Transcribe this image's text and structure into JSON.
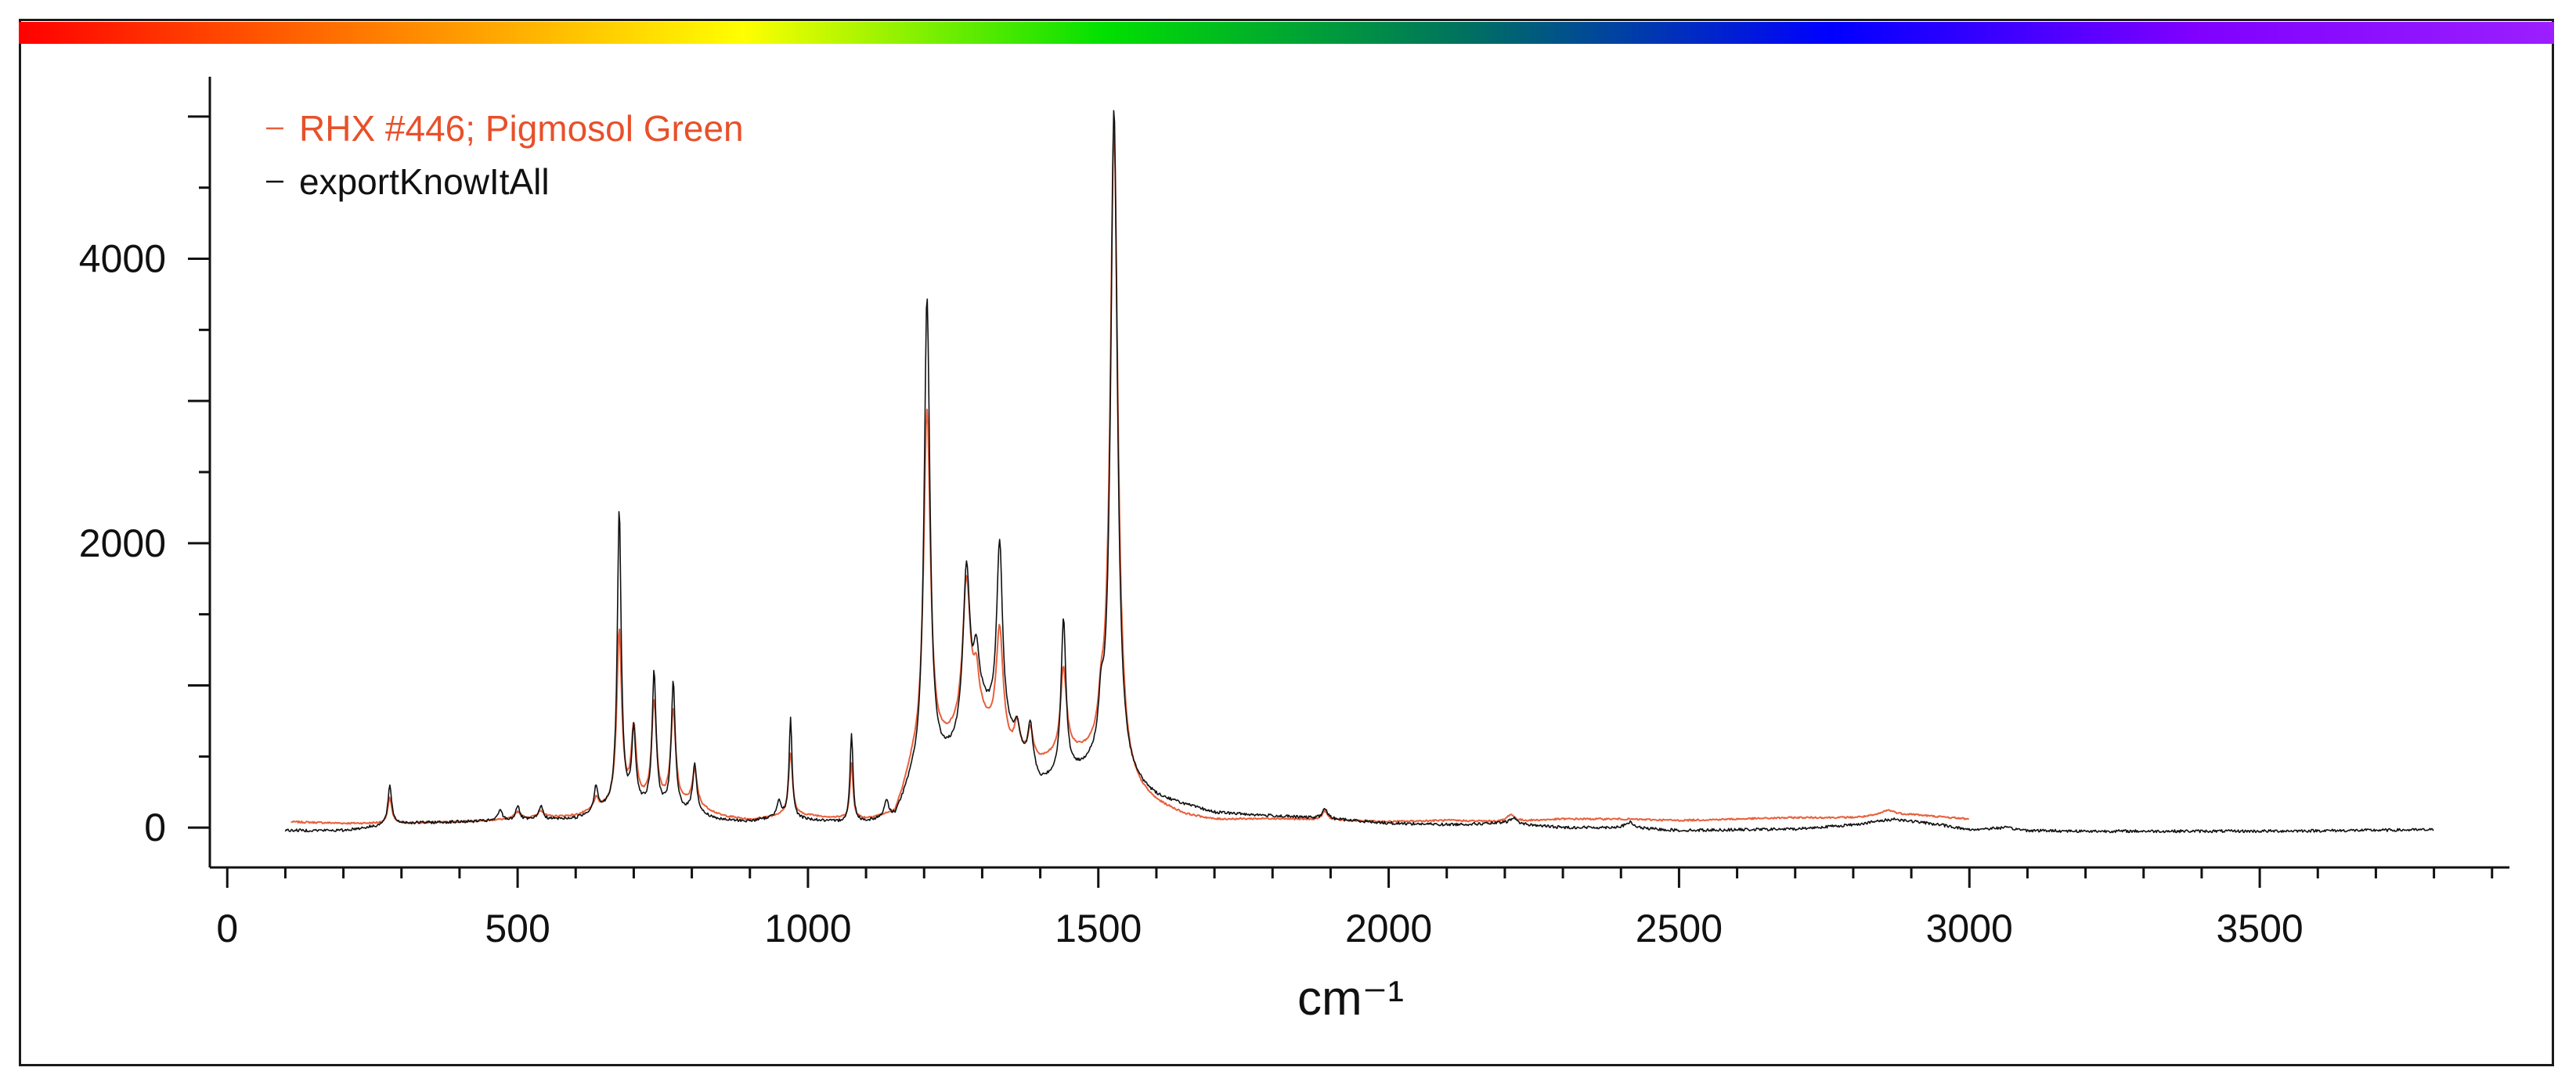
{
  "chart_data": {
    "type": "line",
    "title": "",
    "xlabel": "cm⁻¹",
    "ylabel": "",
    "xlim": [
      -30,
      3930
    ],
    "ylim": [
      -280,
      5280
    ],
    "x_ticks": [
      0,
      500,
      1000,
      1500,
      2000,
      2500,
      3000,
      3500
    ],
    "y_ticks": [
      0,
      2000,
      4000
    ],
    "x_minor_step": 100,
    "y_minor_step": 500,
    "grid": false,
    "legend_placement": "top-left",
    "spectrum_bar_colors": [
      "#ff0000",
      "#ff7f00",
      "#ffff00",
      "#00e000",
      "#007060",
      "#0000ff",
      "#7f00ff",
      "#9b1fff"
    ],
    "series": [
      {
        "name": "RHX #446; Pigmosol Green",
        "color": "#e8603c",
        "baseline": [
          [
            110,
            40
          ],
          [
            200,
            30
          ],
          [
            300,
            30
          ],
          [
            400,
            40
          ],
          [
            500,
            60
          ],
          [
            600,
            80
          ],
          [
            650,
            130
          ],
          [
            700,
            180
          ],
          [
            800,
            160
          ],
          [
            850,
            80
          ],
          [
            900,
            50
          ],
          [
            950,
            80
          ],
          [
            1000,
            80
          ],
          [
            1050,
            60
          ],
          [
            1100,
            50
          ],
          [
            1150,
            80
          ],
          [
            1180,
            400
          ],
          [
            1250,
            600
          ],
          [
            1300,
            700
          ],
          [
            1350,
            500
          ],
          [
            1400,
            450
          ],
          [
            1450,
            500
          ],
          [
            1500,
            450
          ],
          [
            1550,
            250
          ],
          [
            1600,
            150
          ],
          [
            1650,
            80
          ],
          [
            1700,
            50
          ],
          [
            1800,
            60
          ],
          [
            1900,
            50
          ],
          [
            2000,
            40
          ],
          [
            2100,
            50
          ],
          [
            2200,
            40
          ],
          [
            2300,
            60
          ],
          [
            2400,
            60
          ],
          [
            2500,
            50
          ],
          [
            2600,
            60
          ],
          [
            2700,
            70
          ],
          [
            2800,
            70
          ],
          [
            2900,
            90
          ],
          [
            3000,
            60
          ]
        ],
        "peaks": [
          [
            280,
            180,
            4
          ],
          [
            500,
            50,
            6
          ],
          [
            540,
            50,
            6
          ],
          [
            635,
            80,
            5
          ],
          [
            675,
            1220,
            5
          ],
          [
            700,
            500,
            5
          ],
          [
            735,
            700,
            5
          ],
          [
            768,
            650,
            5
          ],
          [
            805,
            240,
            5
          ],
          [
            970,
            450,
            4
          ],
          [
            1075,
            400,
            3
          ],
          [
            1205,
            2450,
            7
          ],
          [
            1273,
            1050,
            8
          ],
          [
            1290,
            300,
            6
          ],
          [
            1330,
            800,
            7
          ],
          [
            1360,
            200,
            6
          ],
          [
            1383,
            200,
            5
          ],
          [
            1440,
            600,
            6
          ],
          [
            1505,
            200,
            5
          ],
          [
            1527,
            4550,
            8
          ],
          [
            1890,
            60,
            6
          ],
          [
            2210,
            50,
            8
          ],
          [
            2860,
            40,
            15
          ]
        ],
        "noise": 6
      },
      {
        "name": "exportKnowItAll",
        "color": "#111111",
        "baseline": [
          [
            100,
            -20
          ],
          [
            200,
            -20
          ],
          [
            300,
            30
          ],
          [
            400,
            40
          ],
          [
            500,
            50
          ],
          [
            600,
            60
          ],
          [
            650,
            120
          ],
          [
            700,
            150
          ],
          [
            800,
            100
          ],
          [
            850,
            50
          ],
          [
            900,
            40
          ],
          [
            950,
            70
          ],
          [
            1000,
            50
          ],
          [
            1050,
            30
          ],
          [
            1100,
            30
          ],
          [
            1150,
            60
          ],
          [
            1180,
            300
          ],
          [
            1250,
            500
          ],
          [
            1300,
            800
          ],
          [
            1350,
            600
          ],
          [
            1400,
            300
          ],
          [
            1450,
            350
          ],
          [
            1500,
            400
          ],
          [
            1550,
            300
          ],
          [
            1600,
            200
          ],
          [
            1650,
            150
          ],
          [
            1700,
            100
          ],
          [
            1800,
            80
          ],
          [
            1900,
            60
          ],
          [
            2000,
            30
          ],
          [
            2100,
            20
          ],
          [
            2200,
            30
          ],
          [
            2300,
            0
          ],
          [
            2400,
            0
          ],
          [
            2500,
            -20
          ],
          [
            2600,
            -15
          ],
          [
            2700,
            -10
          ],
          [
            2800,
            20
          ],
          [
            2870,
            60
          ],
          [
            2950,
            20
          ],
          [
            3000,
            -15
          ],
          [
            3060,
            0
          ],
          [
            3100,
            -20
          ],
          [
            3200,
            -25
          ],
          [
            3500,
            -25
          ],
          [
            3800,
            -15
          ]
        ],
        "peaks": [
          [
            280,
            270,
            4
          ],
          [
            470,
            80,
            4
          ],
          [
            500,
            100,
            4
          ],
          [
            540,
            100,
            4
          ],
          [
            635,
            180,
            4
          ],
          [
            675,
            2100,
            4
          ],
          [
            700,
            520,
            4
          ],
          [
            735,
            950,
            4
          ],
          [
            768,
            900,
            4
          ],
          [
            805,
            350,
            4
          ],
          [
            950,
            120,
            4
          ],
          [
            970,
            700,
            3
          ],
          [
            1075,
            620,
            3
          ],
          [
            1135,
            120,
            4
          ],
          [
            1205,
            3350,
            6
          ],
          [
            1273,
            1150,
            7
          ],
          [
            1290,
            400,
            6
          ],
          [
            1330,
            1300,
            6
          ],
          [
            1360,
            150,
            5
          ],
          [
            1383,
            300,
            5
          ],
          [
            1440,
            1100,
            5
          ],
          [
            1505,
            300,
            5
          ],
          [
            1527,
            4700,
            7
          ],
          [
            1890,
            70,
            5
          ],
          [
            2215,
            40,
            8
          ],
          [
            2415,
            40,
            8
          ]
        ],
        "noise": 10
      }
    ]
  }
}
